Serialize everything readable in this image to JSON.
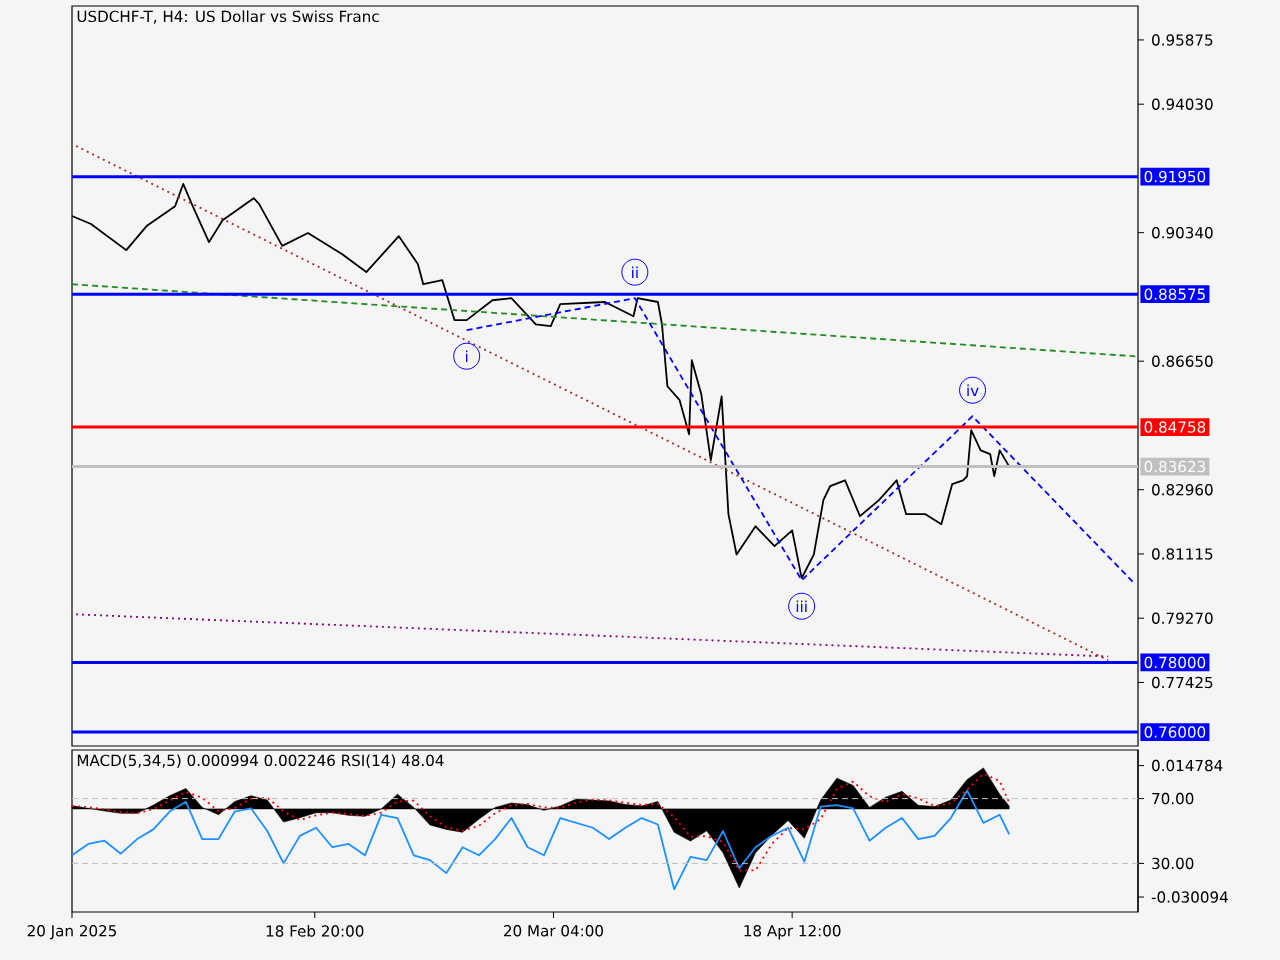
{
  "chart_data": [
    {
      "type": "line",
      "title": "USDCHF-T, H4:  US Dollar vs Swiss Franc",
      "xlim": [
        "2025-01-20",
        "2025-05-31"
      ],
      "ylim": [
        0.756,
        0.9685
      ],
      "yticks": [
        0.95875,
        {
          "value": 0.9403,
          "label": "0.94030"
        },
        {
          "value": 0.9034,
          "label": "0.90340"
        },
        {
          "value": 0.8665,
          "label": "0.86650"
        },
        {
          "value": 0.8296,
          "label": "0.82960"
        },
        0.81115,
        {
          "value": 0.7927,
          "label": "0.79270"
        },
        0.77425
      ],
      "tick_labels": "y",
      "series": [
        {
          "color": "#000000",
          "line_style": "solid",
          "x": [
            "2025-01-20T00:00",
            "2025-01-22T08:00",
            "2025-01-26T16:00",
            "2025-01-29T04:00",
            "2025-02-01T16:00",
            "2025-02-02T16:00",
            "2025-02-03T20:00",
            "2025-02-05T20:00",
            "2025-02-07T12:00",
            "2025-02-11T08:00",
            "2025-02-12T00:00",
            "2025-02-14T20:00",
            "2025-02-18T00:00",
            "2025-02-22T04:00",
            "2025-02-25T04:00",
            "2025-03-01T04:00",
            "2025-03-03T12:00",
            "2025-03-04T04:00",
            "2025-03-06T12:00",
            "2025-03-08T00:00",
            "2025-03-09T12:00",
            "2025-03-12T16:00",
            "2025-03-15T00:00",
            "2025-03-18T00:00",
            "2025-03-19T20:00",
            "2025-03-21T00:00",
            "2025-03-26T12:00",
            "2025-03-30T00:00",
            "2025-03-30T12:00",
            "2025-04-02T00:00",
            "2025-04-02T12:00",
            "2025-04-03T04:00",
            "2025-04-04T16:00",
            "2025-04-05T20:00",
            "2025-04-06T04:00",
            "2025-04-07T08:00",
            "2025-04-08T12:00",
            "2025-04-09T20:00",
            "2025-04-10T16:00",
            "2025-04-11T16:00",
            "2025-04-14T00:00",
            "2025-04-16T08:00",
            "2025-04-18T12:00",
            "2025-04-19T16:00",
            "2025-04-21T04:00",
            "2025-04-22T08:00",
            "2025-04-23T04:00",
            "2025-04-25T00:00",
            "2025-04-26T20:00",
            "2025-04-29T04:00",
            "2025-05-01T08:00",
            "2025-05-02T12:00",
            "2025-05-04T20:00",
            "2025-05-06T20:00",
            "2025-05-08T04:00",
            "2025-05-09T12:00",
            "2025-05-10T00:00",
            "2025-05-10T12:00",
            "2025-05-11T16:00",
            "2025-05-12T20:00",
            "2025-05-13T08:00",
            "2025-05-14T00:00",
            "2025-05-15T04:00"
          ],
          "values": [
            0.9082,
            0.9059,
            0.8984,
            0.9053,
            0.911,
            0.9174,
            0.911,
            0.9007,
            0.907,
            0.9133,
            0.9116,
            0.8996,
            0.9033,
            0.8973,
            0.8921,
            0.9024,
            0.8944,
            0.8886,
            0.8898,
            0.8783,
            0.8783,
            0.884,
            0.8846,
            0.8771,
            0.8766,
            0.8829,
            0.8835,
            0.8794,
            0.8846,
            0.8835,
            0.8771,
            0.8593,
            0.8553,
            0.8455,
            0.8668,
            0.857,
            0.8381,
            0.8564,
            0.8226,
            0.811,
            0.8191,
            0.8134,
            0.8179,
            0.8042,
            0.811,
            0.8266,
            0.8306,
            0.8323,
            0.822,
            0.8266,
            0.8323,
            0.8226,
            0.8226,
            0.8197,
            0.8312,
            0.8323,
            0.8335,
            0.8467,
            0.8409,
            0.8398,
            0.8335,
            0.8409,
            0.8363
          ]
        },
        {
          "color": "#a52a2a",
          "line_style": "dotted",
          "x": [
            "2025-01-20T12:00",
            "2025-05-27T08:00"
          ],
          "values": [
            0.9283,
            0.7806
          ]
        },
        {
          "color": "#228b22",
          "line_style": "dashed",
          "x": [
            "2025-01-20T00:00",
            "2025-05-30T16:00"
          ],
          "values": [
            0.8886,
            0.8679
          ]
        },
        {
          "color": "#800080",
          "line_style": "dotted",
          "x": [
            "2025-01-20T12:00",
            "2025-05-27T08:00"
          ],
          "values": [
            0.7938,
            0.7817
          ]
        },
        {
          "color": "#0000ff",
          "line_style": "dashed",
          "x": [
            "2025-03-09T12:00",
            "2025-03-30T04:00",
            "2025-04-19T16:00",
            "2025-05-10T16:00",
            "2025-05-30T16:00"
          ],
          "values": [
            0.8754,
            0.8846,
            0.8036,
            0.8507,
            0.8024
          ]
        }
      ],
      "ref_lines": [
        {
          "axis": "y",
          "value": 0.9195,
          "label": "0.91950",
          "color": "#0000ff"
        },
        {
          "axis": "y",
          "value": 0.88575,
          "label": "0.88575",
          "color": "#0000ff"
        },
        {
          "axis": "y",
          "value": 0.84758,
          "label": "0.84758",
          "color": "#ff0000"
        },
        {
          "axis": "y",
          "value": 0.83623,
          "label": "0.83623",
          "color": "#c0c0c0"
        },
        {
          "axis": "y",
          "value": 0.78,
          "label": "0.78000",
          "color": "#0000ff"
        },
        {
          "axis": "y",
          "value": 0.76,
          "label": "0.76000",
          "color": "#0000ff"
        }
      ],
      "annotations": [
        {
          "text": "i",
          "x": "2025-03-09T12:00",
          "y": 0.8754
        },
        {
          "text": "ii",
          "x": "2025-03-30T04:00",
          "y": 0.8846
        },
        {
          "text": "iii",
          "x": "2025-04-19T16:00",
          "y": 0.8036
        },
        {
          "text": "iv",
          "x": "2025-05-10T16:00",
          "y": 0.8507
        }
      ]
    },
    {
      "type": "area",
      "title": "MACD(5,34,5) 0.000994 0.002246 RSI(14) 48.04",
      "xlim": [
        "2025-01-20",
        "2025-05-31"
      ],
      "xticks": [
        {
          "value": "2025-01-20",
          "label": "20 Jan 2025"
        },
        {
          "value": "2025-02-18T20:00",
          "label": "18 Feb 20:00"
        },
        {
          "value": "2025-03-20T04:00",
          "label": "20 Mar 04:00"
        },
        {
          "value": "2025-04-18T12:00",
          "label": "18 Apr 12:00"
        }
      ],
      "ylim": [
        -0.0352,
        0.0201
      ],
      "yticks": [
        0.014784,
        -0.030094
      ],
      "y2lim": [
        0,
        100
      ],
      "y2ticks": [
        {
          "value": 70,
          "label": "70.00"
        },
        {
          "value": 30,
          "label": "30.00"
        }
      ],
      "x": [
        "2025-01-20",
        "2025-01-22",
        "2025-01-24",
        "2025-01-26",
        "2025-01-28",
        "2025-01-30",
        "2025-02-01",
        "2025-02-03",
        "2025-02-05",
        "2025-02-07",
        "2025-02-09",
        "2025-02-11",
        "2025-02-13",
        "2025-02-15",
        "2025-02-17",
        "2025-02-19",
        "2025-02-21",
        "2025-02-23",
        "2025-02-25",
        "2025-02-27",
        "2025-03-01",
        "2025-03-03",
        "2025-03-05",
        "2025-03-07",
        "2025-03-09",
        "2025-03-11",
        "2025-03-13",
        "2025-03-15",
        "2025-03-17",
        "2025-03-19",
        "2025-03-21",
        "2025-03-23",
        "2025-03-25",
        "2025-03-27",
        "2025-03-29",
        "2025-03-31",
        "2025-04-02",
        "2025-04-04",
        "2025-04-06",
        "2025-04-08",
        "2025-04-10",
        "2025-04-12",
        "2025-04-14",
        "2025-04-16",
        "2025-04-18",
        "2025-04-20",
        "2025-04-22",
        "2025-04-24",
        "2025-04-26",
        "2025-04-28",
        "2025-04-30",
        "2025-05-02",
        "2025-05-04",
        "2025-05-06",
        "2025-05-08",
        "2025-05-10",
        "2025-05-12",
        "2025-05-14",
        "2025-05-15T04:00"
      ],
      "series": [
        {
          "type": "area",
          "color": "#000000",
          "values": [
            0.0011,
            0.0002,
            -0.0007,
            -0.0015,
            -0.0015,
            0.0013,
            0.0045,
            0.007,
            0.0005,
            -0.002,
            0.0025,
            0.0045,
            0.003,
            -0.0045,
            -0.003,
            -0.0013,
            -0.0013,
            -0.0022,
            -0.0025,
            0.0,
            0.005,
            0.0005,
            -0.0055,
            -0.007,
            -0.008,
            -0.0035,
            0.0005,
            0.002,
            0.0014,
            -0.0005,
            0.001,
            0.0034,
            0.003,
            0.0027,
            0.0015,
            0.001,
            0.0025,
            -0.008,
            -0.011,
            -0.0075,
            -0.015,
            -0.027,
            -0.015,
            -0.009,
            -0.004,
            -0.01,
            0.003,
            0.0105,
            0.008,
            0.0005,
            0.004,
            0.006,
            0.0012,
            0.0008,
            0.003,
            0.01,
            0.014,
            0.005,
            0.001
          ]
        },
        {
          "type": "line",
          "color": "#ff0000",
          "line_style": "dotted",
          "values": [
            0.001,
            0.0006,
            -0.0002,
            -0.0011,
            -0.0015,
            -0.0001,
            0.0029,
            0.0058,
            0.0038,
            -0.0008,
            0.0003,
            0.0035,
            0.0038,
            -0.0008,
            -0.0038,
            -0.0022,
            -0.0013,
            -0.0018,
            -0.0024,
            -0.0013,
            0.0025,
            0.0028,
            -0.0025,
            -0.0063,
            -0.0075,
            -0.0058,
            -0.0015,
            0.0013,
            0.0017,
            0.0005,
            0.0003,
            0.0022,
            0.0032,
            0.0029,
            0.0021,
            0.0013,
            0.0018,
            -0.0028,
            -0.0095,
            -0.0093,
            -0.0113,
            -0.021,
            -0.021,
            -0.012,
            -0.0065,
            -0.007,
            -0.0035,
            0.0068,
            0.0093,
            0.0043,
            0.0023,
            0.005,
            0.0036,
            0.001,
            0.0019,
            0.0065,
            0.012,
            0.0095,
            0.0022
          ]
        },
        {
          "type": "line",
          "color": "#1e90ff",
          "line_style": "solid",
          "axis": "y2",
          "values": [
            35,
            42,
            44,
            36,
            45,
            51,
            62,
            68,
            45,
            45,
            62,
            64,
            50,
            30,
            47,
            52,
            40,
            42,
            35,
            60,
            58,
            35,
            32,
            24,
            40,
            35,
            45,
            58,
            40,
            35,
            58,
            55,
            52,
            45,
            52,
            58,
            54,
            14,
            34,
            32,
            50,
            27,
            40,
            47,
            52,
            31,
            65,
            66,
            64,
            44,
            52,
            58,
            45,
            47,
            58,
            75,
            55,
            60,
            48
          ]
        }
      ],
      "ref_lines": [
        {
          "axis": "y2",
          "value": 70,
          "color": "#c0c0c0",
          "line_style": "dashed"
        },
        {
          "axis": "y2",
          "value": 30,
          "color": "#c0c0c0",
          "line_style": "dashed"
        }
      ]
    }
  ]
}
